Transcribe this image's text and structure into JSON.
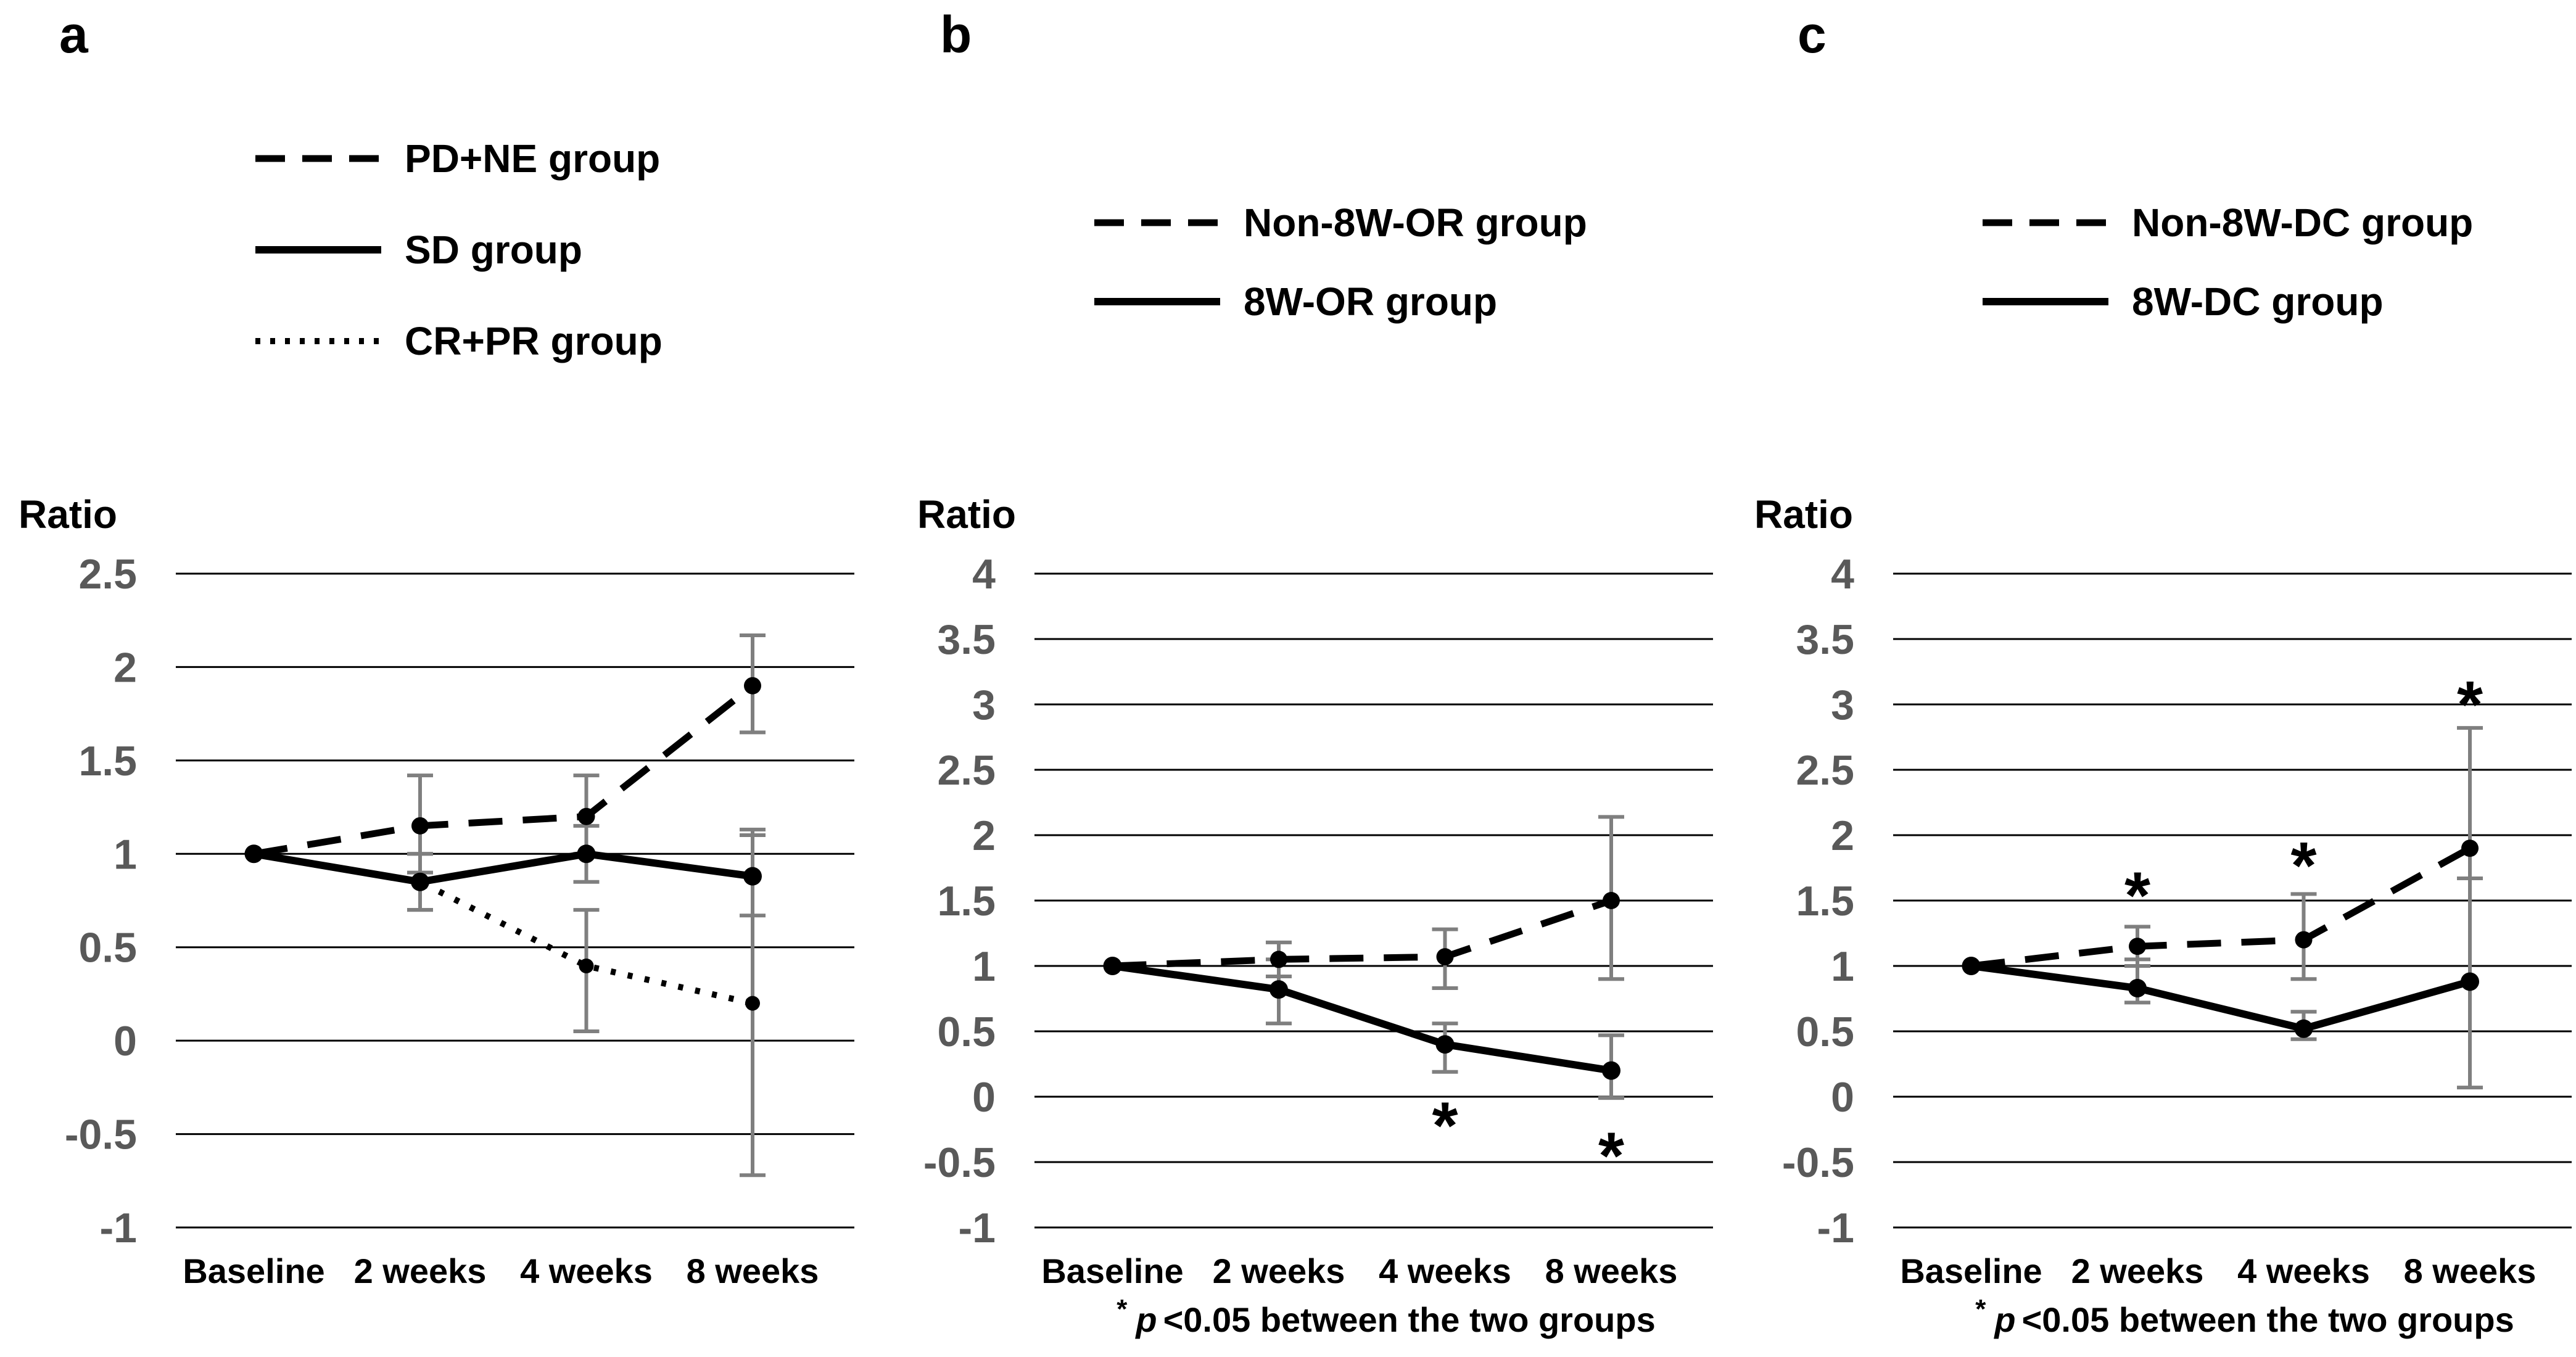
{
  "colors": {
    "series_line": "#000000",
    "error_bar": "#7f7f7f",
    "y_tick_label": "#595959",
    "gridline": "#000000",
    "text": "#000000"
  },
  "chart_data": [
    {
      "type": "line",
      "panel_letter": "a",
      "y_axis_label": "Ratio",
      "categories": [
        "Baseline",
        "2 weeks",
        "4 weeks",
        "8 weeks"
      ],
      "ylim": [
        -1,
        2.5
      ],
      "yticks": [
        2.5,
        2,
        1.5,
        1,
        0.5,
        0,
        -0.5,
        -1
      ],
      "grid": true,
      "legend_position": "top-left",
      "series": [
        {
          "name": "PD+NE group",
          "style": "dashed",
          "values": [
            1.0,
            1.15,
            1.2,
            1.9
          ],
          "err_low": [
            null,
            0.9,
            1.0,
            1.65
          ],
          "err_high": [
            null,
            1.42,
            1.42,
            2.17
          ]
        },
        {
          "name": "SD group",
          "style": "solid",
          "values": [
            1.0,
            0.85,
            1.0,
            0.88
          ],
          "err_low": [
            null,
            0.7,
            0.85,
            0.67
          ],
          "err_high": [
            null,
            1.0,
            1.15,
            1.13
          ]
        },
        {
          "name": "CR+PR group",
          "style": "dotted",
          "values": [
            1.0,
            0.85,
            0.4,
            0.2
          ],
          "err_low": [
            null,
            0.7,
            0.05,
            -0.72
          ],
          "err_high": [
            null,
            1.0,
            0.7,
            1.1
          ]
        }
      ],
      "significance_marks": [],
      "footnote": null
    },
    {
      "type": "line",
      "panel_letter": "b",
      "y_axis_label": "Ratio",
      "categories": [
        "Baseline",
        "2 weeks",
        "4 weeks",
        "8 weeks"
      ],
      "ylim": [
        -1,
        4
      ],
      "yticks": [
        4,
        3.5,
        3,
        2.5,
        2,
        1.5,
        1,
        0.5,
        0,
        -0.5,
        -1
      ],
      "grid": true,
      "legend_position": "top-left",
      "series": [
        {
          "name": "Non-8W-OR group",
          "style": "dashed",
          "values": [
            1.0,
            1.05,
            1.07,
            1.5
          ],
          "err_low": [
            null,
            0.92,
            0.83,
            0.9
          ],
          "err_high": [
            null,
            1.18,
            1.28,
            2.14
          ]
        },
        {
          "name": "8W-OR group",
          "style": "solid",
          "values": [
            1.0,
            0.82,
            0.4,
            0.2
          ],
          "err_low": [
            null,
            0.56,
            0.19,
            -0.01
          ],
          "err_high": [
            null,
            1.05,
            0.56,
            0.47
          ]
        }
      ],
      "significance_marks": [
        {
          "category_index": 2,
          "y": -0.14,
          "symbol": "*"
        },
        {
          "category_index": 3,
          "y": -0.37,
          "symbol": "*"
        }
      ],
      "footnote": {
        "marker": "*",
        "p": "p",
        "text": "<0.05 between the two groups"
      }
    },
    {
      "type": "line",
      "panel_letter": "c",
      "y_axis_label": "Ratio",
      "categories": [
        "Baseline",
        "2 weeks",
        "4 weeks",
        "8 weeks"
      ],
      "ylim": [
        -1,
        4
      ],
      "yticks": [
        4,
        3.5,
        3,
        2.5,
        2,
        1.5,
        1,
        0.5,
        0,
        -0.5,
        -1
      ],
      "grid": true,
      "legend_position": "top-left",
      "series": [
        {
          "name": "Non-8W-DC group",
          "style": "dashed",
          "values": [
            1.0,
            1.15,
            1.2,
            1.9
          ],
          "err_low": [
            null,
            1.0,
            0.9,
            1.67
          ],
          "err_high": [
            null,
            1.3,
            1.55,
            2.82
          ]
        },
        {
          "name": "8W-DC group",
          "style": "solid",
          "values": [
            1.0,
            0.83,
            0.52,
            0.88
          ],
          "err_low": [
            null,
            0.72,
            0.44,
            0.07
          ],
          "err_high": [
            null,
            1.05,
            0.65,
            1.67
          ]
        }
      ],
      "significance_marks": [
        {
          "category_index": 1,
          "y": 1.62,
          "symbol": "*"
        },
        {
          "category_index": 2,
          "y": 1.85,
          "symbol": "*"
        },
        {
          "category_index": 3,
          "y": 3.08,
          "symbol": "*"
        }
      ],
      "footnote": {
        "marker": "*",
        "p": "p",
        "text": "<0.05 between the two groups"
      }
    }
  ]
}
